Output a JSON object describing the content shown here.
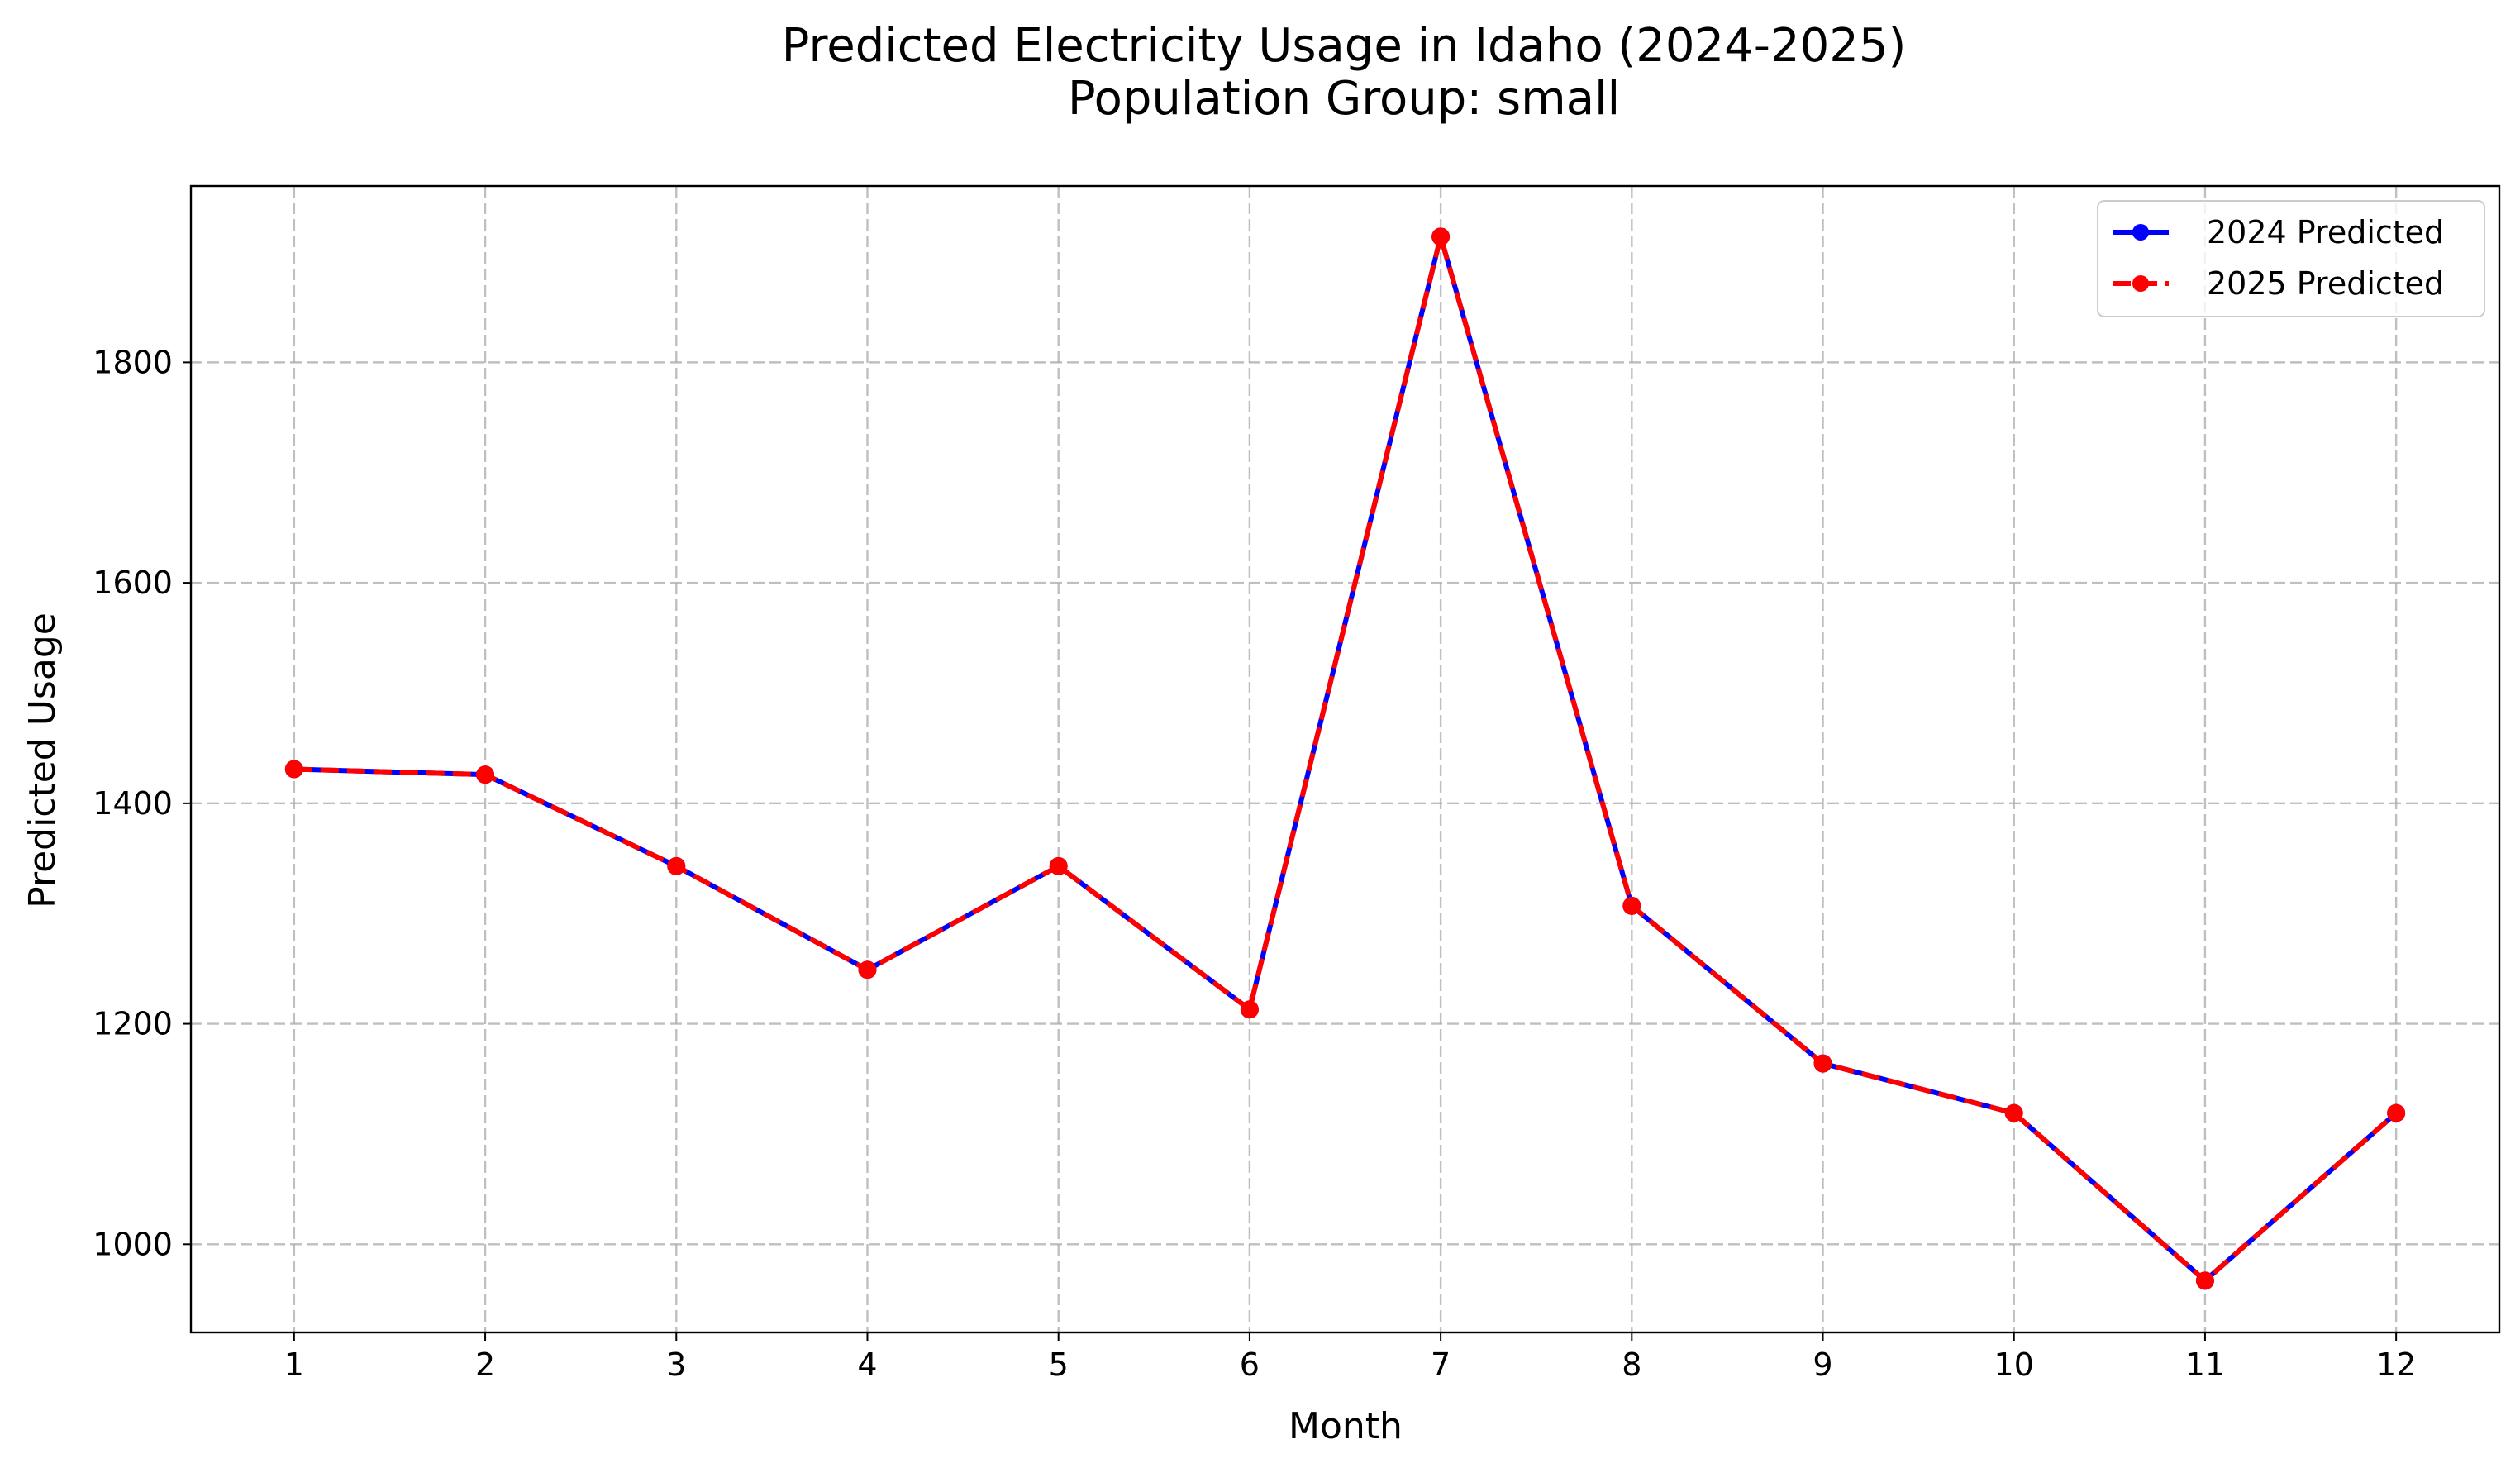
{
  "chart_data": {
    "type": "line",
    "title": "Predicted Electricity Usage in Idaho (2024-2025)",
    "subtitle": "Population Group: small",
    "xlabel": "Month",
    "ylabel": "Predicted Usage",
    "x": [
      1,
      2,
      3,
      4,
      5,
      6,
      7,
      8,
      9,
      10,
      11,
      12
    ],
    "xlim": [
      0.46,
      12.54
    ],
    "ylim": [
      920,
      1960
    ],
    "yticks": [
      1000,
      1200,
      1400,
      1600,
      1800
    ],
    "grid": true,
    "legend_position": "top-right",
    "series": [
      {
        "name": "2024 Predicted",
        "color": "#0000ff",
        "line_style": "solid",
        "marker": "circle",
        "values": [
          1431,
          1426,
          1343,
          1249,
          1343,
          1213,
          1914,
          1307,
          1164,
          1119,
          967,
          1119
        ]
      },
      {
        "name": "2025 Predicted",
        "color": "#ff0000",
        "line_style": "dashed",
        "marker": "circle",
        "values": [
          1431,
          1426,
          1343,
          1249,
          1343,
          1213,
          1914,
          1307,
          1164,
          1119,
          967,
          1119
        ]
      }
    ]
  }
}
